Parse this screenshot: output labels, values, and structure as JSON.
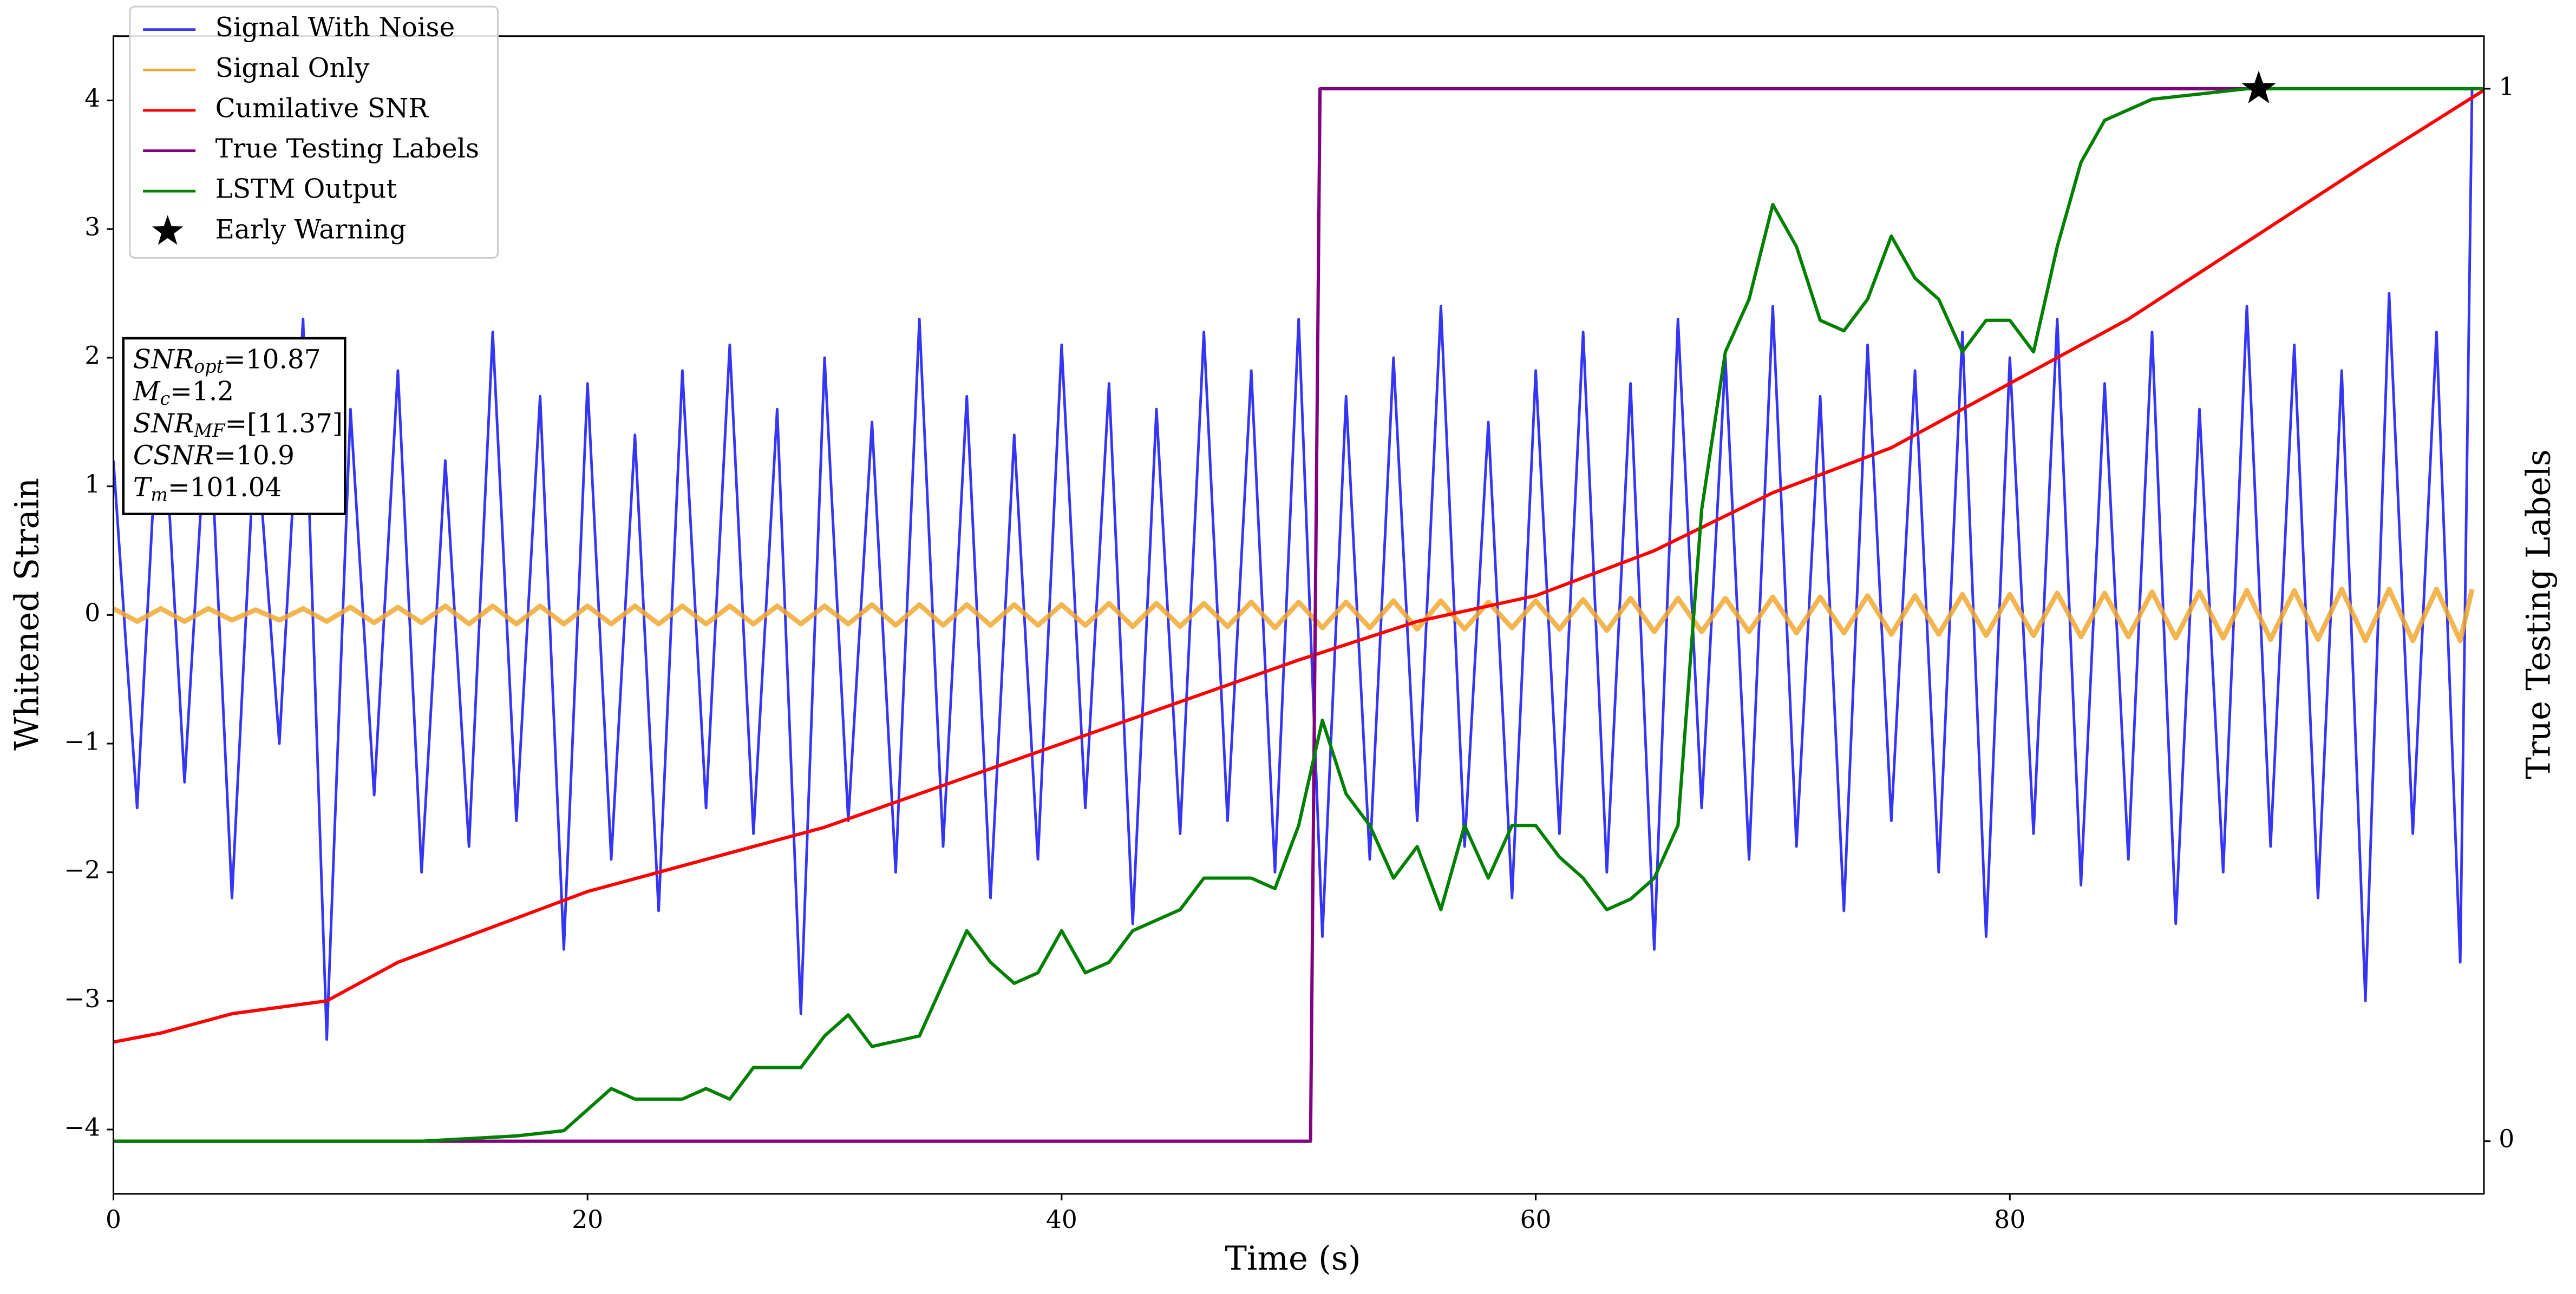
{
  "chart_data": {
    "type": "line",
    "xlabel": "Time (s)",
    "ylabel": "Whitened Strain",
    "y2label": "True Testing Labels",
    "xlim": [
      0,
      100
    ],
    "xticks": [
      0,
      20,
      40,
      60,
      80
    ],
    "ylim": [
      -4.5,
      4.5
    ],
    "yticks": [
      {
        "value": -4,
        "label": "−4"
      },
      {
        "value": -3,
        "label": "−3"
      },
      {
        "value": -2,
        "label": "−2"
      },
      {
        "value": -1,
        "label": "−1"
      },
      0,
      1,
      2,
      3,
      4
    ],
    "y2lim": [
      -0.05,
      1.05
    ],
    "y2ticks": [
      0,
      1
    ],
    "legend": "upper left",
    "series": [
      {
        "name": "Signal With Noise",
        "color": "#3535f5",
        "axis": "y",
        "x": [
          0,
          1,
          2,
          3,
          4,
          5,
          6,
          7,
          8,
          9,
          10,
          11,
          12,
          13,
          14,
          15,
          16,
          17,
          18,
          19,
          20,
          21,
          22,
          23,
          24,
          25,
          26,
          27,
          28,
          29,
          30,
          31,
          32,
          33,
          34,
          35,
          36,
          37,
          38,
          39,
          40,
          41,
          42,
          43,
          44,
          45,
          46,
          47,
          48,
          49,
          50,
          51,
          52,
          53,
          54,
          55,
          56,
          57,
          58,
          59,
          60,
          61,
          62,
          63,
          64,
          65,
          66,
          67,
          68,
          69,
          70,
          71,
          72,
          73,
          74,
          75,
          76,
          77,
          78,
          79,
          80,
          81,
          82,
          83,
          84,
          85,
          86,
          87,
          88,
          89,
          90,
          91,
          92,
          93,
          94,
          95,
          96,
          97,
          98,
          99,
          99.5
        ],
        "values": [
          1.2,
          -1.5,
          2.0,
          -1.3,
          1.8,
          -2.2,
          1.5,
          -1.0,
          2.3,
          -3.3,
          1.6,
          -1.4,
          1.9,
          -2.0,
          1.2,
          -1.8,
          2.2,
          -1.6,
          1.7,
          -2.6,
          1.8,
          -1.9,
          1.4,
          -2.3,
          1.9,
          -1.5,
          2.1,
          -1.7,
          1.6,
          -3.1,
          2.0,
          -1.6,
          1.5,
          -2.0,
          2.3,
          -1.8,
          1.7,
          -2.2,
          1.4,
          -1.9,
          2.1,
          -1.5,
          1.8,
          -2.4,
          1.6,
          -1.7,
          2.2,
          -1.6,
          1.9,
          -2.0,
          2.3,
          -2.5,
          1.7,
          -1.9,
          2.0,
          -1.6,
          2.4,
          -1.8,
          1.5,
          -2.2,
          1.9,
          -1.7,
          2.2,
          -2.0,
          1.8,
          -2.6,
          2.3,
          -1.5,
          2.0,
          -1.9,
          2.4,
          -1.8,
          1.7,
          -2.3,
          2.1,
          -1.6,
          1.9,
          -2.0,
          2.2,
          -2.5,
          2.0,
          -1.7,
          2.3,
          -2.1,
          1.8,
          -1.9,
          2.2,
          -2.4,
          1.6,
          -2.0,
          2.4,
          -1.8,
          2.1,
          -2.2,
          1.9,
          -3.0,
          2.5,
          -1.7,
          2.2,
          -2.7,
          4.1
        ]
      },
      {
        "name": "Signal Only",
        "color": "#f0a830",
        "axis": "y",
        "x": [
          0,
          1,
          2,
          3,
          4,
          5,
          6,
          7,
          8,
          9,
          10,
          11,
          12,
          13,
          14,
          15,
          16,
          17,
          18,
          19,
          20,
          21,
          22,
          23,
          24,
          25,
          26,
          27,
          28,
          29,
          30,
          31,
          32,
          33,
          34,
          35,
          36,
          37,
          38,
          39,
          40,
          41,
          42,
          43,
          44,
          45,
          46,
          47,
          48,
          49,
          50,
          51,
          52,
          53,
          54,
          55,
          56,
          57,
          58,
          59,
          60,
          61,
          62,
          63,
          64,
          65,
          66,
          67,
          68,
          69,
          70,
          71,
          72,
          73,
          74,
          75,
          76,
          77,
          78,
          79,
          80,
          81,
          82,
          83,
          84,
          85,
          86,
          87,
          88,
          89,
          90,
          91,
          92,
          93,
          94,
          95,
          96,
          97,
          98,
          99,
          99.5
        ],
        "values": [
          0.05,
          -0.05,
          0.05,
          -0.05,
          0.05,
          -0.04,
          0.04,
          -0.04,
          0.05,
          -0.05,
          0.06,
          -0.06,
          0.06,
          -0.06,
          0.07,
          -0.07,
          0.07,
          -0.07,
          0.07,
          -0.07,
          0.07,
          -0.07,
          0.07,
          -0.07,
          0.07,
          -0.07,
          0.07,
          -0.07,
          0.07,
          -0.07,
          0.07,
          -0.07,
          0.08,
          -0.08,
          0.08,
          -0.08,
          0.08,
          -0.08,
          0.08,
          -0.08,
          0.08,
          -0.08,
          0.09,
          -0.09,
          0.09,
          -0.09,
          0.09,
          -0.09,
          0.1,
          -0.1,
          0.1,
          -0.1,
          0.1,
          -0.1,
          0.11,
          -0.11,
          0.11,
          -0.11,
          0.1,
          -0.1,
          0.11,
          -0.11,
          0.12,
          -0.12,
          0.13,
          -0.13,
          0.13,
          -0.13,
          0.13,
          -0.13,
          0.14,
          -0.14,
          0.14,
          -0.14,
          0.15,
          -0.15,
          0.15,
          -0.15,
          0.16,
          -0.16,
          0.16,
          -0.16,
          0.17,
          -0.17,
          0.17,
          -0.17,
          0.18,
          -0.18,
          0.18,
          -0.18,
          0.19,
          -0.19,
          0.19,
          -0.19,
          0.2,
          -0.2,
          0.2,
          -0.2,
          0.2,
          -0.2,
          0.2
        ]
      },
      {
        "name": "Cumilative SNR",
        "color": "#ff0000",
        "axis": "y",
        "x": [
          0,
          2,
          5,
          9,
          12,
          20,
          30,
          40,
          50,
          55,
          60,
          65,
          70,
          75,
          80,
          85,
          90,
          95,
          100
        ],
        "values": [
          -3.32,
          -3.25,
          -3.1,
          -3.0,
          -2.7,
          -2.15,
          -1.65,
          -1.0,
          -0.35,
          -0.05,
          0.15,
          0.5,
          0.95,
          1.3,
          1.8,
          2.3,
          2.9,
          3.5,
          4.08
        ]
      },
      {
        "name": "True Testing Labels",
        "color": "#800080",
        "axis": "y2",
        "x": [
          0,
          50.5,
          50.9,
          100
        ],
        "values": [
          0,
          0,
          1,
          1
        ]
      },
      {
        "name": "LSTM Output",
        "color": "#008000",
        "axis": "y2",
        "x": [
          0,
          13,
          17,
          19,
          20,
          21,
          22,
          24,
          25,
          26,
          27,
          28,
          29,
          30,
          31,
          32,
          34,
          35,
          36,
          37,
          38,
          39,
          40,
          41,
          42,
          43,
          44,
          45,
          46,
          47,
          48,
          49,
          50,
          51,
          52,
          53,
          54,
          55,
          56,
          57,
          58,
          59,
          60,
          61,
          62,
          63,
          64,
          65,
          66,
          67,
          68,
          69,
          70,
          71,
          72,
          73,
          74,
          75,
          76,
          77,
          78,
          79,
          80,
          81,
          82,
          83,
          84,
          86,
          90,
          100
        ],
        "values": [
          0,
          0,
          0.005,
          0.01,
          0.03,
          0.05,
          0.04,
          0.04,
          0.05,
          0.04,
          0.07,
          0.07,
          0.07,
          0.1,
          0.12,
          0.09,
          0.1,
          0.15,
          0.2,
          0.17,
          0.15,
          0.16,
          0.2,
          0.16,
          0.17,
          0.2,
          0.21,
          0.22,
          0.25,
          0.25,
          0.25,
          0.24,
          0.3,
          0.4,
          0.33,
          0.3,
          0.25,
          0.28,
          0.22,
          0.3,
          0.25,
          0.3,
          0.3,
          0.27,
          0.25,
          0.22,
          0.23,
          0.25,
          0.3,
          0.6,
          0.75,
          0.8,
          0.89,
          0.85,
          0.78,
          0.77,
          0.8,
          0.86,
          0.82,
          0.8,
          0.75,
          0.78,
          0.78,
          0.75,
          0.85,
          0.93,
          0.97,
          0.99,
          1,
          1
        ]
      }
    ],
    "early_warning": {
      "name": "Early Warning",
      "color": "#000000",
      "axis": "y2",
      "x": 90.5,
      "y": 1
    },
    "annotations": [
      {
        "main": "SNR",
        "sub": "opt",
        "rest": "=10.87"
      },
      {
        "main": "M",
        "sub": "c",
        "rest": "=1.2"
      },
      {
        "main": "SNR",
        "sub": "MF",
        "rest": "=[11.37]"
      },
      {
        "main": "CSNR",
        "rest": "=10.9"
      },
      {
        "main": "T",
        "sub": "m",
        "rest": "=101.04"
      }
    ]
  }
}
